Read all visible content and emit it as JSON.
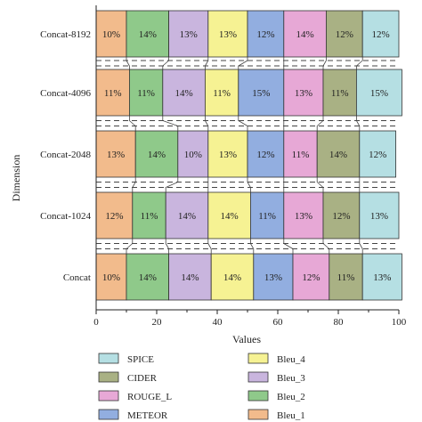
{
  "chart_data": {
    "type": "bar",
    "orientation": "horizontal",
    "stacked": true,
    "xlabel": "Values",
    "ylabel": "Dimension",
    "xlim": [
      0,
      100
    ],
    "xticks": [
      0,
      20,
      40,
      60,
      80,
      100
    ],
    "grid": false,
    "legend_position": "bottom",
    "categories": [
      "Concat-8192",
      "Concat-4096",
      "Concat-2048",
      "Concat-1024",
      "Concat"
    ],
    "series": [
      {
        "name": "Bleu_1",
        "color": "#F2BB8C",
        "values": [
          10,
          11,
          13,
          12,
          10
        ]
      },
      {
        "name": "Bleu_2",
        "color": "#8FC98A",
        "values": [
          14,
          11,
          14,
          11,
          14
        ]
      },
      {
        "name": "Bleu_3",
        "color": "#C9B5DE",
        "values": [
          13,
          14,
          10,
          14,
          14
        ]
      },
      {
        "name": "Bleu_4",
        "color": "#F6F293",
        "values": [
          13,
          11,
          13,
          14,
          14
        ]
      },
      {
        "name": "METEOR",
        "color": "#92AEE0",
        "values": [
          12,
          15,
          12,
          11,
          13
        ]
      },
      {
        "name": "ROUGE_L",
        "color": "#E7A8D6",
        "values": [
          14,
          13,
          11,
          13,
          12
        ]
      },
      {
        "name": "CIDER",
        "color": "#A9B184",
        "values": [
          12,
          11,
          14,
          12,
          11
        ]
      },
      {
        "name": "SPICE",
        "color": "#B5DFE3",
        "values": [
          12,
          15,
          12,
          13,
          13
        ]
      }
    ],
    "legend_columns": [
      [
        "SPICE",
        "CIDER",
        "ROUGE_L",
        "METEOR"
      ],
      [
        "Bleu_4",
        "Bleu_3",
        "Bleu_2",
        "Bleu_1"
      ]
    ],
    "value_suffix": "%"
  }
}
